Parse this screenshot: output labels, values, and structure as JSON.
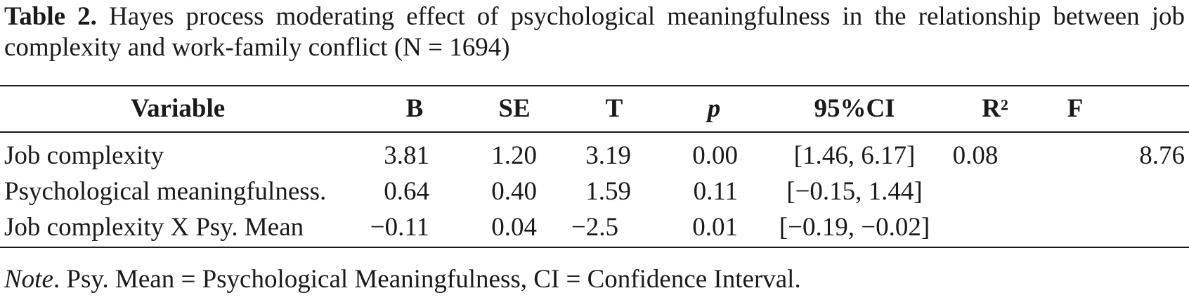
{
  "caption": {
    "label": "Table 2.",
    "text": "Hayes process moderating effect of psychological meaningfulness in the relationship between job complexity and work-family conflict (N = 1694)"
  },
  "table": {
    "headers": {
      "variable": "Variable",
      "b": "B",
      "se": "SE",
      "t": "T",
      "p": "p",
      "ci": "95%CI",
      "r2": "R²",
      "f": "F"
    },
    "rows": [
      {
        "variable": "Job complexity",
        "b": "3.81",
        "se": "1.20",
        "t": "3.19",
        "p": "0.00",
        "ci": "[1.46, 6.17]",
        "r2": "0.08",
        "f": "8.76"
      },
      {
        "variable": "Psychological meaningfulness.",
        "b": "0.64",
        "se": "0.40",
        "t": "1.59",
        "p": "0.11",
        "ci": "[−0.15, 1.44]",
        "r2": "",
        "f": ""
      },
      {
        "variable": "Job complexity X Psy. Mean",
        "b": "−0.11",
        "se": "0.04",
        "t": "−2.5",
        "p": "0.01",
        "ci": "[−0.19, −0.02]",
        "r2": "",
        "f": ""
      }
    ]
  },
  "note": {
    "label": "Note",
    "text": ". Psy. Mean = Psychological Meaningfulness, CI = Confidence Interval."
  }
}
